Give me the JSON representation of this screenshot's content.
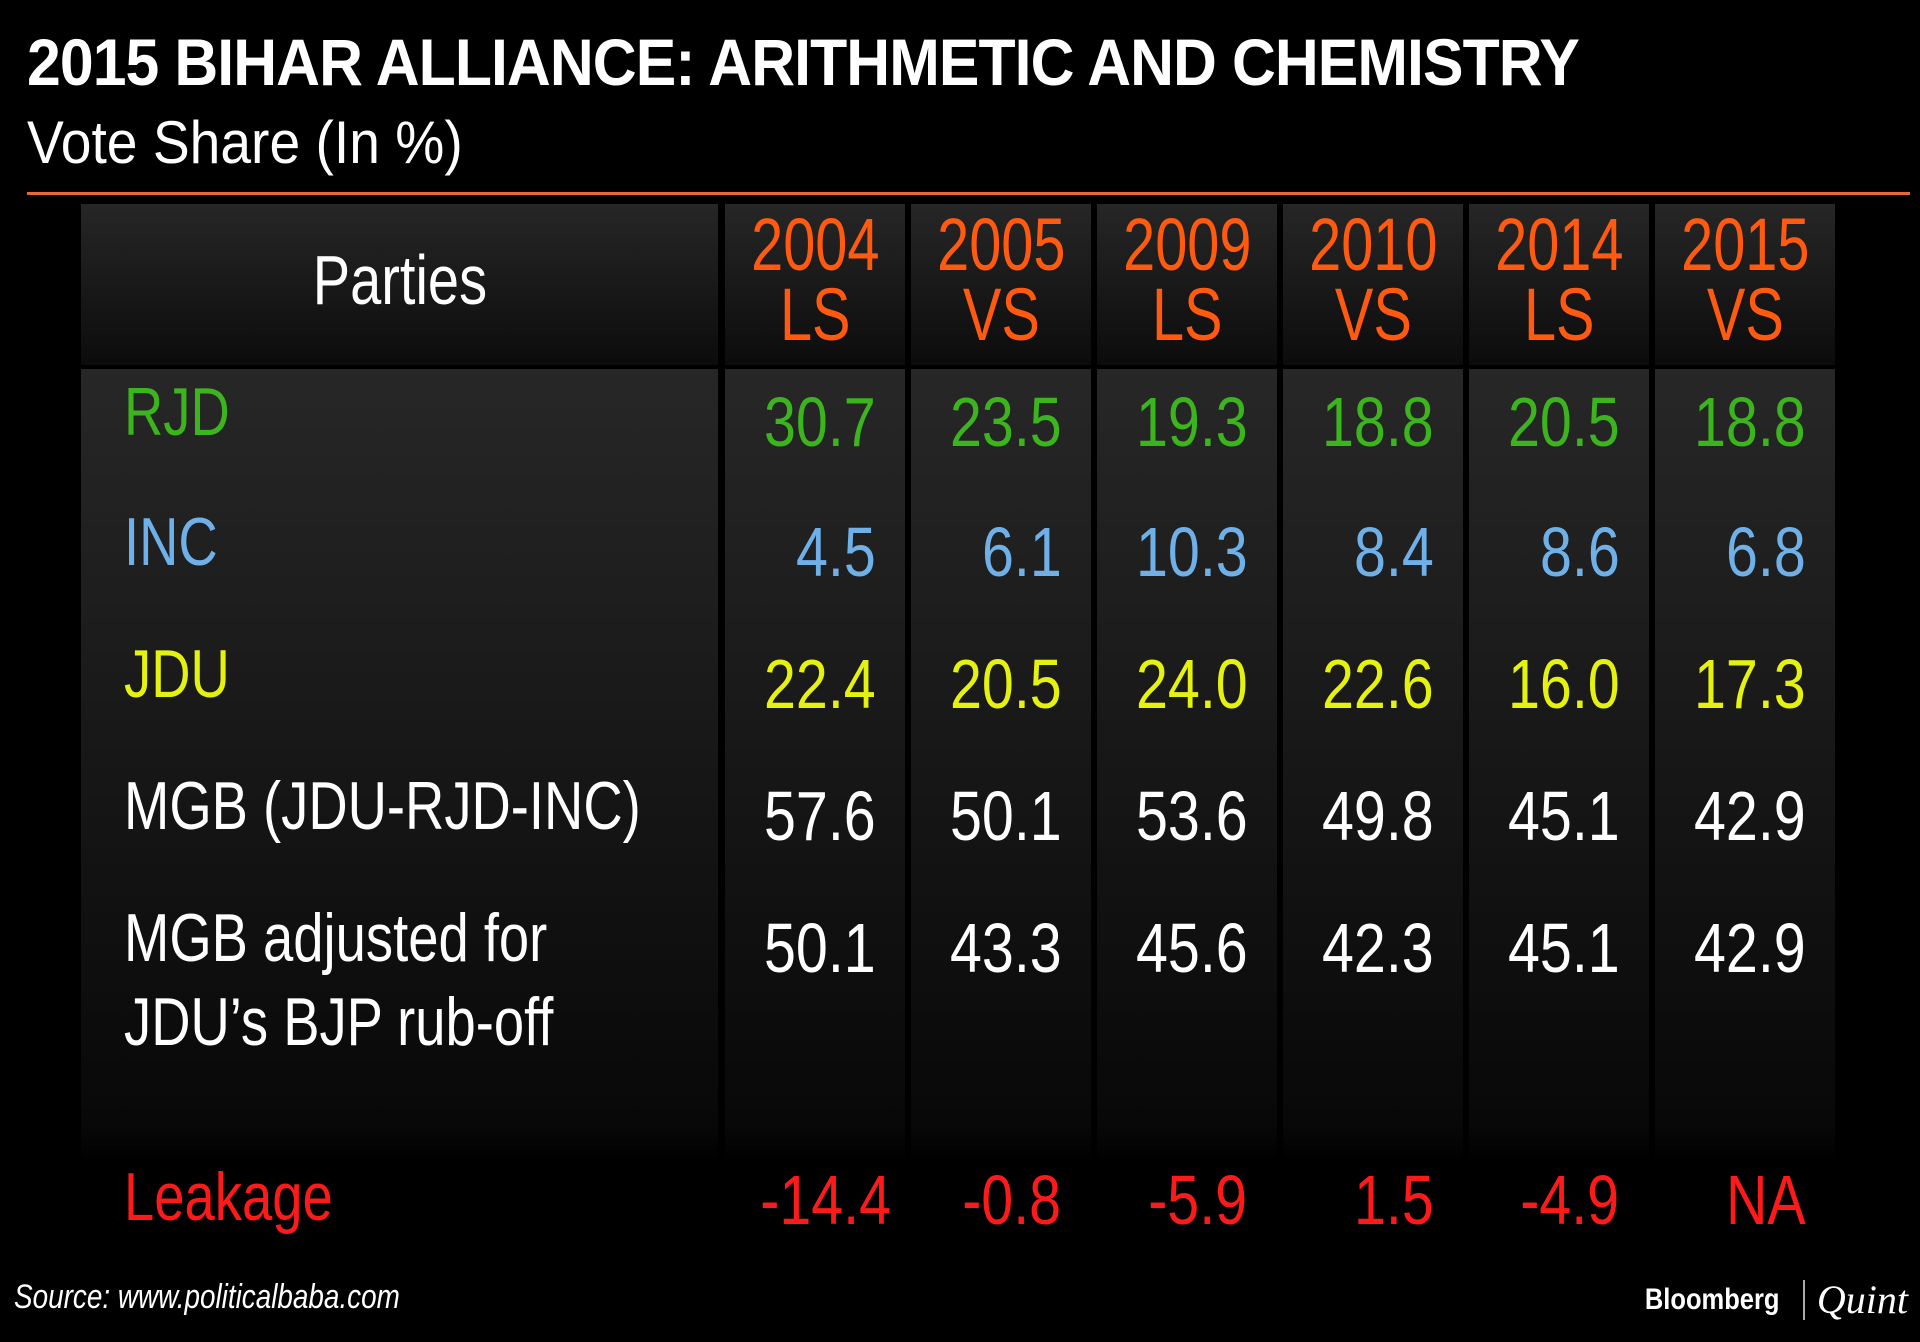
{
  "title": "2015 BIHAR ALLIANCE: ARITHMETIC AND CHEMISTRY",
  "subtitle": "Vote Share (In %)",
  "source": "Source: www.politicalbaba.com",
  "logo": {
    "brand": "Bloomberg",
    "sub": "Quint"
  },
  "colors": {
    "accent": "#ff5a10",
    "RJD": "#3cb41e",
    "INC": "#6fb0e8",
    "JDU": "#e5f20f",
    "MGB": "#ffffff",
    "Leakage": "#ff1a1a"
  },
  "chart_data": {
    "type": "table",
    "header": "Parties",
    "columns": [
      {
        "year": "2004",
        "type": "LS"
      },
      {
        "year": "2005",
        "type": "VS"
      },
      {
        "year": "2009",
        "type": "LS"
      },
      {
        "year": "2010",
        "type": "VS"
      },
      {
        "year": "2014",
        "type": "LS"
      },
      {
        "year": "2015",
        "type": "VS"
      }
    ],
    "rows": [
      {
        "label": "RJD",
        "color": "#3cb41e",
        "values": [
          "30.7",
          "23.5",
          "19.3",
          "18.8",
          "20.5",
          "18.8"
        ]
      },
      {
        "label": "INC",
        "color": "#6fb0e8",
        "values": [
          "4.5",
          "6.1",
          "10.3",
          "8.4",
          "8.6",
          "6.8"
        ]
      },
      {
        "label": "JDU",
        "color": "#e5f20f",
        "values": [
          "22.4",
          "20.5",
          "24.0",
          "22.6",
          "16.0",
          "17.3"
        ]
      },
      {
        "label": "MGB (JDU-RJD-INC)",
        "color": "#ffffff",
        "values": [
          "57.6",
          "50.1",
          "53.6",
          "49.8",
          "45.1",
          "42.9"
        ]
      },
      {
        "label": "MGB adjusted for",
        "label2": "JDU’s BJP rub-off",
        "color": "#ffffff",
        "values": [
          "50.1",
          "43.3",
          "45.6",
          "42.3",
          "45.1",
          "42.9"
        ]
      },
      {
        "label": "Leakage",
        "color": "#ff1a1a",
        "values": [
          "-14.4",
          "-0.8",
          "-5.9",
          "1.5",
          "-4.9",
          "NA"
        ]
      }
    ]
  }
}
